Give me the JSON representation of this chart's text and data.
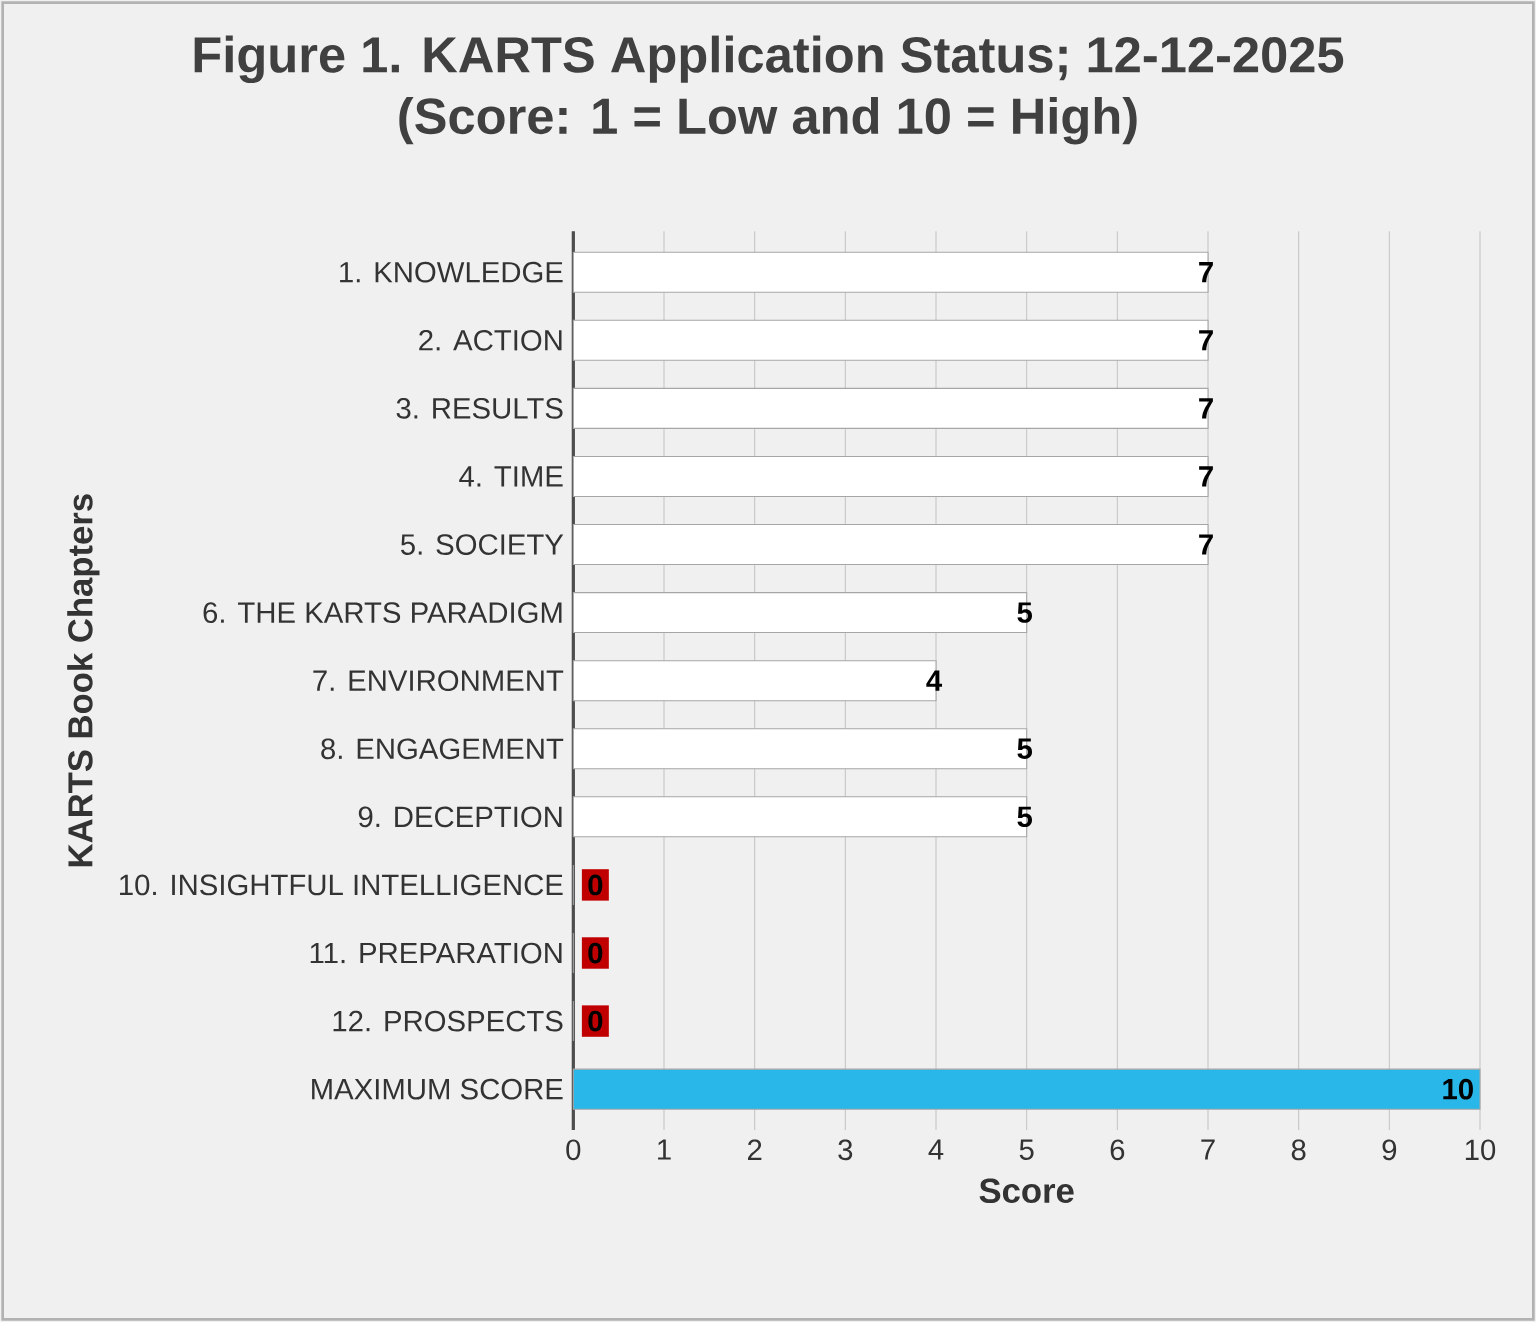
{
  "chart_data": {
    "type": "bar",
    "orientation": "horizontal",
    "title": "Figure 1. KARTS Application Status; 12-12-2025",
    "subtitle": "(Score: 1 = Low and 10 = High)",
    "xlabel": "Score",
    "ylabel": "KARTS Book Chapters",
    "categories": [
      "1. KNOWLEDGE",
      "2. ACTION",
      "3. RESULTS",
      "4. TIME",
      "5. SOCIETY",
      "6. THE KARTS PARADIGM",
      "7. ENVIRONMENT",
      "8. ENGAGEMENT",
      "9. DECEPTION",
      "10. INSIGHTFUL INTELLIGENCE",
      "11. PREPARATION",
      "12. PROSPECTS",
      "MAXIMUM SCORE"
    ],
    "values": [
      7,
      7,
      7,
      7,
      7,
      5,
      4,
      5,
      5,
      0,
      0,
      0,
      10
    ],
    "colors": [
      "#ffffff",
      "#ffffff",
      "#ffffff",
      "#ffffff",
      "#ffffff",
      "#ffffff",
      "#ffffff",
      "#ffffff",
      "#ffffff",
      "#c00000",
      "#c00000",
      "#c00000",
      "#29b6e8"
    ],
    "xlim": [
      0,
      10
    ],
    "xticks": [
      0,
      1,
      2,
      3,
      4,
      5,
      6,
      7,
      8,
      9,
      10
    ],
    "grid": "x",
    "data_labels": true
  }
}
